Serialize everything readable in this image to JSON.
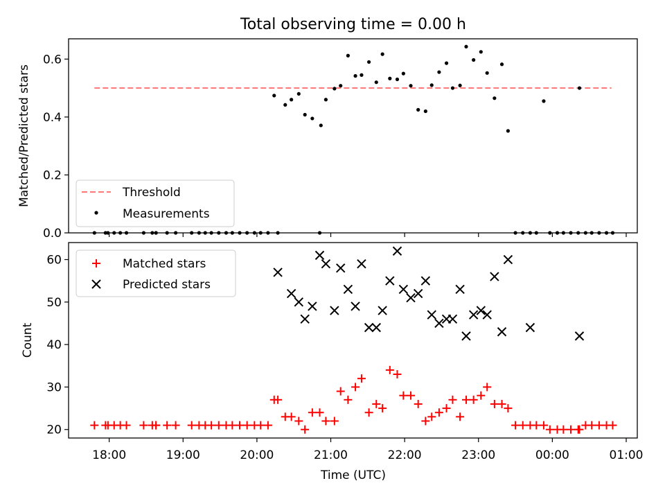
{
  "title": "Total observing time = 0.00 h",
  "x_axis": {
    "label": "Time (UTC)",
    "tick_labels": [
      "18:00",
      "19:00",
      "20:00",
      "21:00",
      "22:00",
      "23:00",
      "00:00",
      "01:00"
    ],
    "tick_hours": [
      18,
      19,
      20,
      21,
      22,
      23,
      24,
      25
    ],
    "range_hours": [
      17.45,
      25.15
    ]
  },
  "chart_data": [
    {
      "type": "scatter",
      "ylabel": "Matched/Predicted stars",
      "ylim": [
        0,
        0.67
      ],
      "yticks": [
        "0.0",
        "0.2",
        "0.4",
        "0.6"
      ],
      "ytick_values": [
        0.0,
        0.2,
        0.4,
        0.6
      ],
      "legend_position": "lower-left",
      "threshold": {
        "name": "Threshold",
        "value": 0.5,
        "x_range": [
          17.8,
          24.8
        ],
        "color": "#ff7777",
        "style": "dashed"
      },
      "series": [
        {
          "name": "Measurements",
          "marker": "dot",
          "color": "#000000",
          "x": [
            "17:48",
            "17:57",
            "17:59",
            "18:04",
            "18:09",
            "18:14",
            "18:28",
            "18:35",
            "18:38",
            "18:38",
            "18:47",
            "18:54",
            "19:07",
            "19:13",
            "19:18",
            "19:23",
            "19:29",
            "19:35",
            "19:40",
            "19:46",
            "19:52",
            "19:58",
            "20:03",
            "20:09",
            "20:14",
            "20:17",
            "20:23",
            "20:28",
            "20:34",
            "20:39",
            "20:45",
            "20:51",
            "20:52",
            "20:56",
            "21:03",
            "21:08",
            "21:14",
            "21:20",
            "21:25",
            "21:31",
            "21:37",
            "21:42",
            "21:48",
            "21:54",
            "21:59",
            "22:05",
            "22:11",
            "22:17",
            "22:22",
            "22:28",
            "22:34",
            "22:39",
            "22:45",
            "22:50",
            "22:56",
            "23:02",
            "23:07",
            "23:13",
            "23:19",
            "23:24",
            "23:30",
            "23:36",
            "23:42",
            "23:47",
            "23:53",
            "23:58",
            "00:04",
            "00:09",
            "00:15",
            "00:21",
            "00:22",
            "00:27",
            "00:32",
            "00:38",
            "00:44",
            "00:49"
          ],
          "y": [
            0,
            0,
            0,
            0,
            0,
            0,
            0,
            0,
            0,
            0,
            0,
            0,
            0,
            0,
            0,
            0,
            0,
            0,
            0,
            0,
            0,
            0,
            0,
            0,
            0.474,
            0,
            0.442,
            0.46,
            0.48,
            0.408,
            0.395,
            0,
            0.371,
            0.46,
            0.498,
            0.508,
            0.612,
            0.542,
            0.545,
            0.59,
            0.52,
            0.617,
            0.533,
            0.53,
            0.55,
            0.508,
            0.425,
            0.42,
            0.51,
            0.555,
            0.586,
            0.5,
            0.509,
            0.643,
            0.597,
            0.625,
            0.552,
            0.465,
            0.582,
            0.352,
            0,
            0,
            0,
            0,
            0.455,
            0,
            0,
            0,
            0,
            0,
            0.5,
            0,
            0,
            0,
            0,
            0
          ]
        }
      ]
    },
    {
      "type": "scatter",
      "ylabel": "Count",
      "xlabel": "Time (UTC)",
      "ylim": [
        18,
        64
      ],
      "yticks": [
        "20",
        "30",
        "40",
        "50",
        "60"
      ],
      "ytick_values": [
        20,
        30,
        40,
        50,
        60
      ],
      "legend_position": "upper-left",
      "series": [
        {
          "name": "Matched stars",
          "marker": "plus",
          "color": "#ff0000",
          "x": [
            "17:48",
            "17:57",
            "17:59",
            "18:04",
            "18:09",
            "18:14",
            "18:28",
            "18:35",
            "18:38",
            "18:38",
            "18:47",
            "18:54",
            "19:07",
            "19:13",
            "19:18",
            "19:23",
            "19:29",
            "19:35",
            "19:40",
            "19:46",
            "19:52",
            "19:58",
            "20:03",
            "20:09",
            "20:14",
            "20:17",
            "20:23",
            "20:28",
            "20:34",
            "20:39",
            "20:45",
            "20:51",
            "20:56",
            "21:03",
            "21:08",
            "21:14",
            "21:20",
            "21:25",
            "21:31",
            "21:37",
            "21:42",
            "21:48",
            "21:54",
            "21:59",
            "22:05",
            "22:11",
            "22:17",
            "22:22",
            "22:28",
            "22:34",
            "22:39",
            "22:45",
            "22:50",
            "22:56",
            "23:02",
            "23:07",
            "23:13",
            "23:19",
            "23:24",
            "23:30",
            "23:36",
            "23:42",
            "23:47",
            "23:53",
            "23:58",
            "00:04",
            "00:09",
            "00:15",
            "00:21",
            "00:22",
            "00:27",
            "00:32",
            "00:38",
            "00:44",
            "00:49"
          ],
          "y": [
            21,
            21,
            21,
            21,
            21,
            21,
            21,
            21,
            21,
            21,
            21,
            21,
            21,
            21,
            21,
            21,
            21,
            21,
            21,
            21,
            21,
            21,
            21,
            21,
            27,
            27,
            23,
            23,
            22,
            20,
            24,
            24,
            22,
            22,
            29,
            27,
            30,
            32,
            24,
            26,
            25,
            34,
            33,
            28,
            28,
            26,
            22,
            23,
            24,
            25,
            27,
            23,
            27,
            27,
            28,
            30,
            26,
            26,
            25,
            21,
            21,
            21,
            21,
            21,
            20,
            20,
            20,
            20,
            20,
            20,
            21,
            21,
            21,
            21,
            21
          ]
        },
        {
          "name": "Predicted stars",
          "marker": "x",
          "color": "#000000",
          "x": [
            "20:17",
            "20:28",
            "20:34",
            "20:39",
            "20:45",
            "20:51",
            "20:56",
            "21:03",
            "21:08",
            "21:14",
            "21:20",
            "21:25",
            "21:31",
            "21:37",
            "21:42",
            "21:48",
            "21:54",
            "21:59",
            "22:05",
            "22:11",
            "22:17",
            "22:22",
            "22:28",
            "22:34",
            "22:39",
            "22:45",
            "22:50",
            "22:56",
            "23:02",
            "23:07",
            "23:13",
            "23:19",
            "23:24",
            "23:42",
            "00:22"
          ],
          "y": [
            57,
            52,
            50,
            46,
            49,
            61,
            59,
            48,
            58,
            53,
            49,
            59,
            44,
            44,
            48,
            55,
            62,
            53,
            51,
            52,
            55,
            47,
            45,
            46,
            46,
            53,
            42,
            47,
            48,
            47,
            56,
            43,
            60,
            44,
            42
          ]
        }
      ]
    }
  ]
}
